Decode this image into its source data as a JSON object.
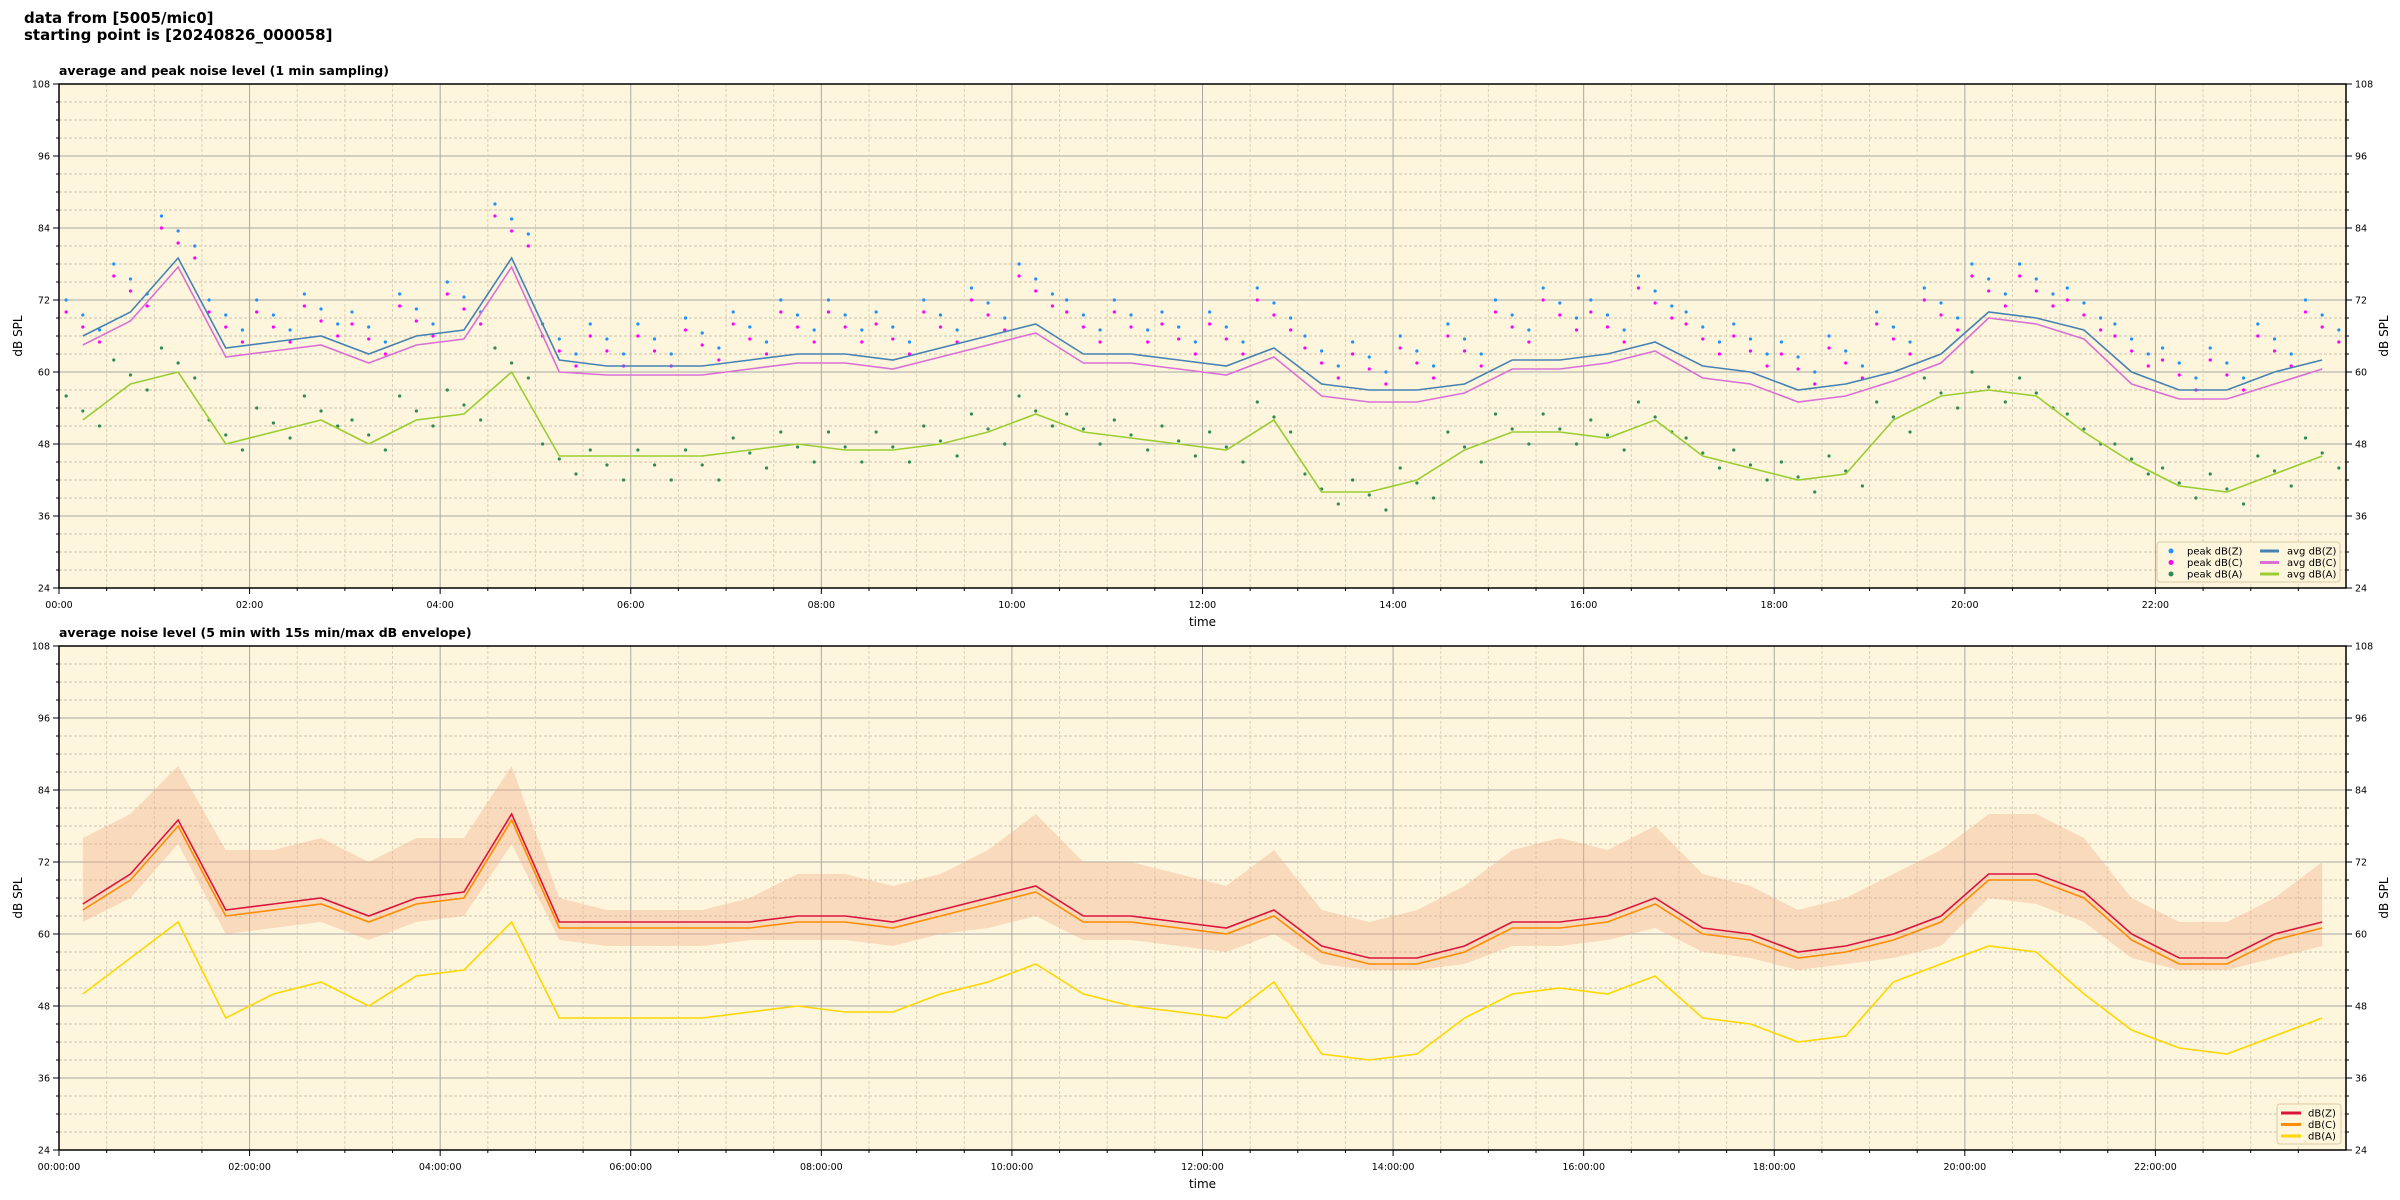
{
  "header": {
    "line1": "data from [5005/mic0]",
    "line2": "starting point is [20240826_000058]"
  },
  "colors": {
    "background": "#fdf6dc",
    "peak_z": "#1e90ff",
    "peak_c": "#ff00ff",
    "peak_a": "#2e8b57",
    "avg_z": "#4682b4",
    "avg_c": "#da70d6",
    "avg_a": "#9acd32",
    "db_z": "#dc143c",
    "db_c": "#ff8c00",
    "db_a": "#ffd700",
    "envelope": "#f4a582"
  },
  "chart_data": [
    {
      "type": "line",
      "title": "average and peak noise level (1 min sampling)",
      "xlabel": "time",
      "ylabel": "dB SPL",
      "xlim": [
        0,
        24
      ],
      "ylim": [
        24,
        108
      ],
      "yticks": [
        24,
        36,
        48,
        60,
        72,
        84,
        96,
        108
      ],
      "xticks": [
        "00:00",
        "02:00",
        "04:00",
        "06:00",
        "08:00",
        "10:00",
        "12:00",
        "14:00",
        "16:00",
        "18:00",
        "20:00",
        "22:00"
      ],
      "grid": true,
      "legend_placement": "bottom-right",
      "x_step_hours": 0.5,
      "series": [
        {
          "name": "peak dB(Z)",
          "kind": "scatter",
          "color_key": "peak_z",
          "values": [
            72,
            78,
            86,
            72,
            72,
            73,
            70,
            73,
            75,
            88,
            68,
            68,
            68,
            69,
            70,
            72,
            72,
            70,
            72,
            74,
            78,
            72,
            72,
            70,
            70,
            74,
            66,
            65,
            66,
            68,
            72,
            74,
            72,
            76,
            70,
            68,
            65,
            66,
            70,
            74,
            78,
            78,
            74,
            68,
            64,
            64,
            68,
            72
          ]
        },
        {
          "name": "peak dB(C)",
          "kind": "scatter",
          "color_key": "peak_c",
          "values": [
            70,
            76,
            84,
            70,
            70,
            71,
            68,
            71,
            73,
            86,
            66,
            66,
            66,
            67,
            68,
            70,
            70,
            68,
            70,
            72,
            76,
            70,
            70,
            68,
            68,
            72,
            64,
            63,
            64,
            66,
            70,
            72,
            70,
            74,
            68,
            66,
            63,
            64,
            68,
            72,
            76,
            76,
            72,
            66,
            62,
            62,
            66,
            70
          ]
        },
        {
          "name": "peak dB(A)",
          "kind": "scatter",
          "color_key": "peak_a",
          "values": [
            56,
            62,
            64,
            52,
            54,
            56,
            52,
            56,
            57,
            64,
            48,
            47,
            47,
            47,
            49,
            50,
            50,
            50,
            51,
            53,
            56,
            53,
            52,
            51,
            50,
            55,
            43,
            42,
            44,
            50,
            53,
            53,
            52,
            55,
            49,
            47,
            45,
            46,
            55,
            59,
            60,
            59,
            53,
            48,
            44,
            43,
            46,
            49
          ]
        },
        {
          "name": "avg dB(Z)",
          "kind": "line",
          "color_key": "avg_z",
          "values": [
            66,
            70,
            79,
            64,
            65,
            66,
            63,
            66,
            67,
            79,
            62,
            61,
            61,
            61,
            62,
            63,
            63,
            62,
            64,
            66,
            68,
            63,
            63,
            62,
            61,
            64,
            58,
            57,
            57,
            58,
            62,
            62,
            63,
            65,
            61,
            60,
            57,
            58,
            60,
            63,
            70,
            69,
            67,
            60,
            57,
            57,
            60,
            62
          ]
        },
        {
          "name": "avg dB(C)",
          "kind": "line",
          "color_key": "avg_c",
          "values": [
            64.5,
            68.5,
            77.5,
            62.5,
            63.5,
            64.5,
            61.5,
            64.5,
            65.5,
            77.5,
            60,
            59.5,
            59.5,
            59.5,
            60.5,
            61.5,
            61.5,
            60.5,
            62.5,
            64.5,
            66.5,
            61.5,
            61.5,
            60.5,
            59.5,
            62.5,
            56,
            55,
            55,
            56.5,
            60.5,
            60.5,
            61.5,
            63.5,
            59,
            58,
            55,
            56,
            58.5,
            61.5,
            69,
            68,
            65.5,
            58,
            55.5,
            55.5,
            58,
            60.5
          ]
        },
        {
          "name": "avg dB(A)",
          "kind": "line",
          "color_key": "avg_a",
          "values": [
            52,
            58,
            60,
            48,
            50,
            52,
            48,
            52,
            53,
            60,
            46,
            46,
            46,
            46,
            47,
            48,
            47,
            47,
            48,
            50,
            53,
            50,
            49,
            48,
            47,
            52,
            40,
            40,
            42,
            47,
            50,
            50,
            49,
            52,
            46,
            44,
            42,
            43,
            52,
            56,
            57,
            56,
            50,
            45,
            41,
            40,
            43,
            46
          ]
        }
      ]
    },
    {
      "type": "line",
      "title": "average noise level (5 min with 15s min/max dB envelope)",
      "xlabel": "time",
      "ylabel": "dB SPL",
      "xlim": [
        0,
        24
      ],
      "ylim": [
        24,
        108
      ],
      "yticks": [
        24,
        36,
        48,
        60,
        72,
        84,
        96,
        108
      ],
      "xticks": [
        "00:00:00",
        "02:00:00",
        "04:00:00",
        "06:00:00",
        "08:00:00",
        "10:00:00",
        "12:00:00",
        "14:00:00",
        "16:00:00",
        "18:00:00",
        "20:00:00",
        "22:00:00"
      ],
      "grid": true,
      "legend_placement": "bottom-right",
      "x_step_hours": 0.5,
      "envelope": {
        "max": [
          76,
          80,
          88,
          74,
          74,
          76,
          72,
          76,
          76,
          88,
          66,
          64,
          64,
          64,
          66,
          70,
          70,
          68,
          70,
          74,
          80,
          72,
          72,
          70,
          68,
          74,
          64,
          62,
          64,
          68,
          74,
          76,
          74,
          78,
          70,
          68,
          64,
          66,
          70,
          74,
          80,
          80,
          76,
          66,
          62,
          62,
          66,
          72
        ],
        "min": [
          62,
          66,
          75,
          60,
          61,
          62,
          59,
          62,
          63,
          75,
          59,
          58,
          58,
          58,
          59,
          59,
          59,
          58,
          60,
          61,
          63,
          59,
          59,
          58,
          57,
          60,
          55,
          54,
          54,
          55,
          58,
          58,
          59,
          61,
          57,
          56,
          54,
          55,
          56,
          58,
          66,
          65,
          62,
          56,
          54,
          54,
          56,
          58
        ]
      },
      "series": [
        {
          "name": "dB(Z)",
          "kind": "line",
          "color_key": "db_z",
          "values": [
            65,
            70,
            79,
            64,
            65,
            66,
            63,
            66,
            67,
            80,
            62,
            62,
            62,
            62,
            62,
            63,
            63,
            62,
            64,
            66,
            68,
            63,
            63,
            62,
            61,
            64,
            58,
            56,
            56,
            58,
            62,
            62,
            63,
            66,
            61,
            60,
            57,
            58,
            60,
            63,
            70,
            70,
            67,
            60,
            56,
            56,
            60,
            62
          ]
        },
        {
          "name": "dB(C)",
          "kind": "line",
          "color_key": "db_c",
          "values": [
            64,
            69,
            78,
            63,
            64,
            65,
            62,
            65,
            66,
            79,
            61,
            61,
            61,
            61,
            61,
            62,
            62,
            61,
            63,
            65,
            67,
            62,
            62,
            61,
            60,
            63,
            57,
            55,
            55,
            57,
            61,
            61,
            62,
            65,
            60,
            59,
            56,
            57,
            59,
            62,
            69,
            69,
            66,
            59,
            55,
            55,
            59,
            61
          ]
        },
        {
          "name": "dB(A)",
          "kind": "line",
          "color_key": "db_a",
          "values": [
            50,
            56,
            62,
            46,
            50,
            52,
            48,
            53,
            54,
            62,
            46,
            46,
            46,
            46,
            47,
            48,
            47,
            47,
            50,
            52,
            55,
            50,
            48,
            47,
            46,
            52,
            40,
            39,
            40,
            46,
            50,
            51,
            50,
            53,
            46,
            45,
            42,
            43,
            52,
            55,
            58,
            57,
            50,
            44,
            41,
            40,
            43,
            46
          ]
        }
      ]
    }
  ]
}
